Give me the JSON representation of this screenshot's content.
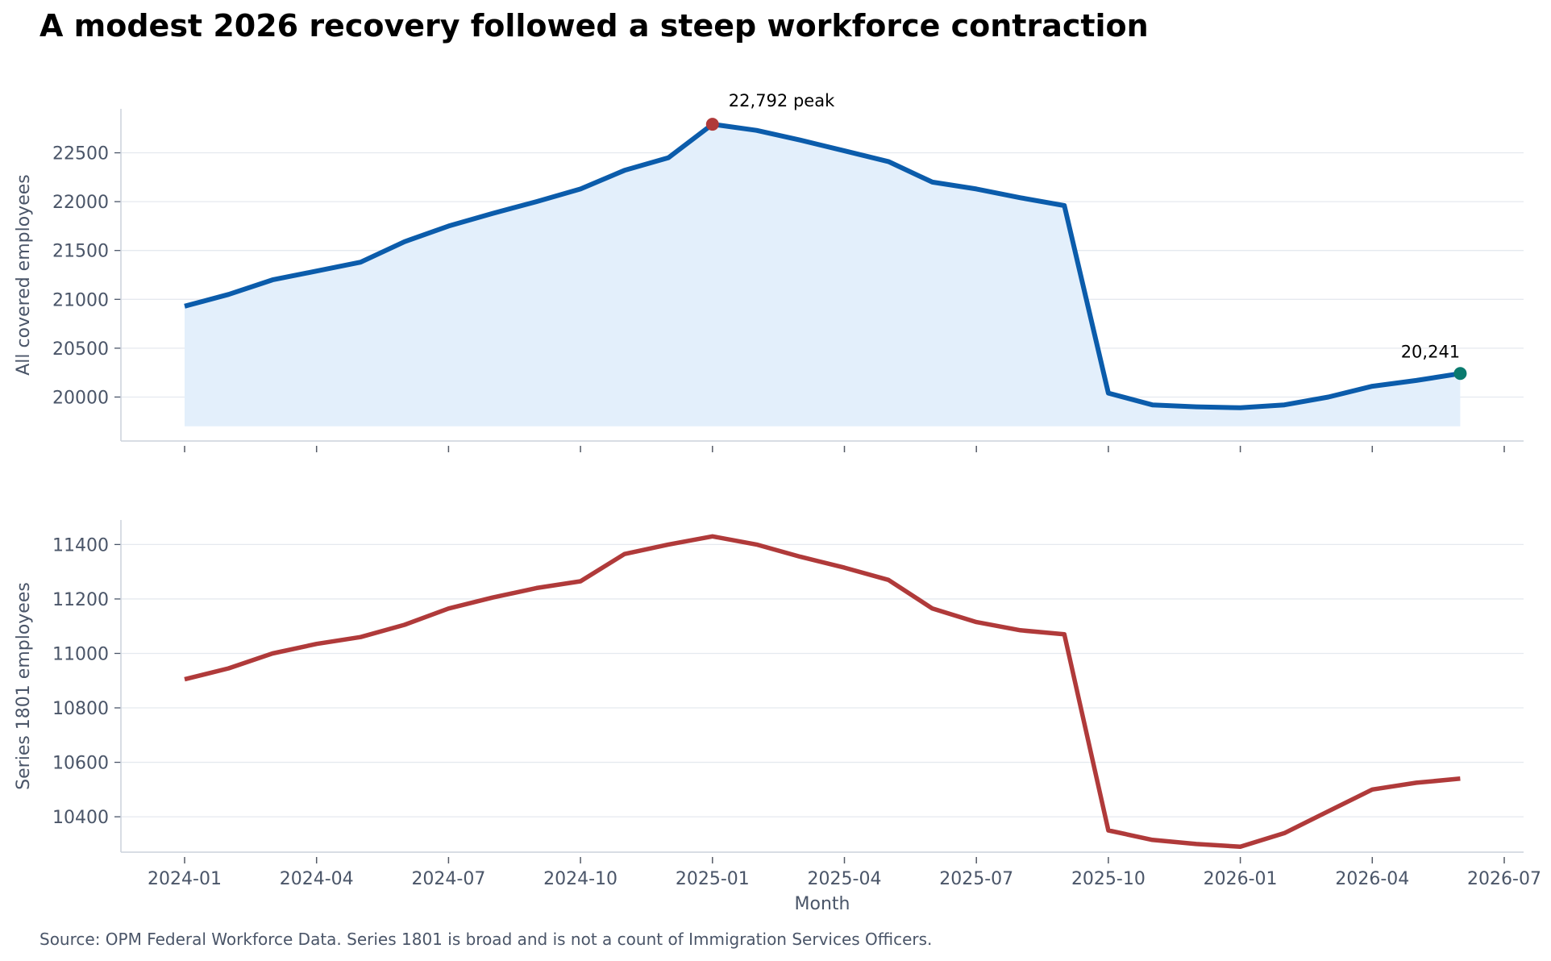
{
  "title": "A modest 2026 recovery followed a steep workforce contraction",
  "source": "Source: OPM Federal Workforce Data. Series 1801 is broad and is not a count of Immigration Services Officers.",
  "colors": {
    "top_line": "#0b5cab",
    "top_fill": "#e3effb",
    "bottom_line": "#b03a3a",
    "peak_marker": "#b03a3a",
    "end_marker": "#0a7a6e",
    "axis_text": "#4a5568",
    "grid": "#e5e9ef",
    "spine": "#cbd2dc"
  },
  "chart_data": [
    {
      "type": "area",
      "ylabel": "All covered employees",
      "ylim": [
        19550,
        22950
      ],
      "yticks": [
        20000,
        20500,
        21000,
        21500,
        22000,
        22500
      ],
      "x": [
        "2024-01",
        "2024-02",
        "2024-03",
        "2024-04",
        "2024-05",
        "2024-06",
        "2024-07",
        "2024-08",
        "2024-09",
        "2024-10",
        "2024-11",
        "2024-12",
        "2025-01",
        "2025-02",
        "2025-03",
        "2025-04",
        "2025-05",
        "2025-06",
        "2025-07",
        "2025-08",
        "2025-09",
        "2025-10",
        "2025-11",
        "2025-12",
        "2026-01",
        "2026-02",
        "2026-03",
        "2026-04",
        "2026-05",
        "2026-06"
      ],
      "values": [
        20930,
        21050,
        21200,
        21290,
        21380,
        21590,
        21750,
        21880,
        22000,
        22130,
        22320,
        22450,
        22792,
        22730,
        22630,
        22520,
        22410,
        22200,
        22130,
        22040,
        21960,
        20040,
        19920,
        19900,
        19890,
        19920,
        20000,
        20110,
        20170,
        20241
      ],
      "fill_base": 19700,
      "grid": "horizontal",
      "annotations": [
        {
          "label": "22,792 peak",
          "x": "2025-01",
          "y": 22792
        },
        {
          "label": "20,241",
          "x": "2026-06",
          "y": 20241
        }
      ]
    },
    {
      "type": "line",
      "ylabel": "Series 1801 employees",
      "xlabel": "Month",
      "ylim": [
        10270,
        11490
      ],
      "yticks": [
        10400,
        10600,
        10800,
        11000,
        11200,
        11400
      ],
      "xticks": [
        "2024-01",
        "2024-04",
        "2024-07",
        "2024-10",
        "2025-01",
        "2025-04",
        "2025-07",
        "2025-10",
        "2026-01",
        "2026-04",
        "2026-07"
      ],
      "x": [
        "2024-01",
        "2024-02",
        "2024-03",
        "2024-04",
        "2024-05",
        "2024-06",
        "2024-07",
        "2024-08",
        "2024-09",
        "2024-10",
        "2024-11",
        "2024-12",
        "2025-01",
        "2025-02",
        "2025-03",
        "2025-04",
        "2025-05",
        "2025-06",
        "2025-07",
        "2025-08",
        "2025-09",
        "2025-10",
        "2025-11",
        "2025-12",
        "2026-01",
        "2026-02",
        "2026-03",
        "2026-04",
        "2026-05",
        "2026-06"
      ],
      "values": [
        10905,
        10945,
        11000,
        11035,
        11060,
        11105,
        11165,
        11205,
        11240,
        11265,
        11365,
        11400,
        11430,
        11400,
        11355,
        11315,
        11270,
        11165,
        11115,
        11085,
        11070,
        10350,
        10315,
        10300,
        10290,
        10340,
        10420,
        10500,
        10525,
        10540
      ],
      "grid": "horizontal"
    }
  ]
}
